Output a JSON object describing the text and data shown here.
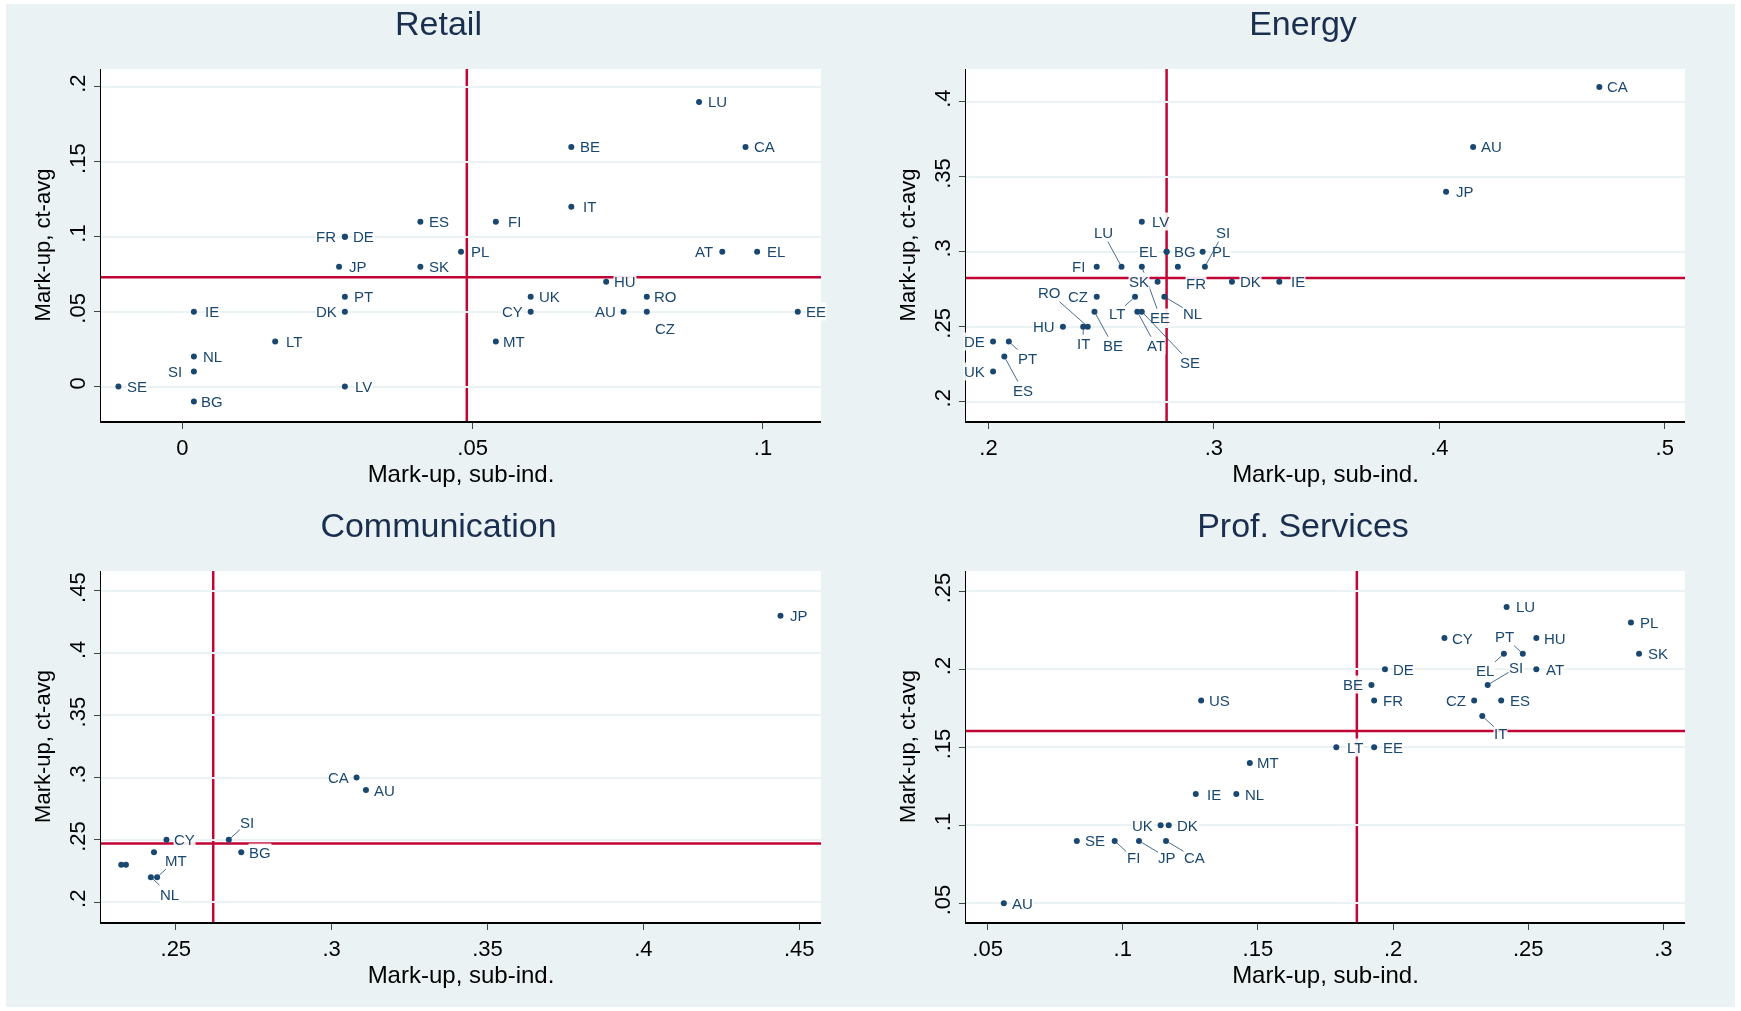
{
  "chart_data": [
    {
      "type": "scatter",
      "title": "Retail",
      "xlabel": "Mark-up, sub-ind.",
      "ylabel": "Mark-up, ct-avg",
      "marker": "circle",
      "grid": "y",
      "legend": false,
      "series": [
        {
          "color": "#1a476f",
          "x": [
            0.089,
            0.067,
            0.097,
            0.067,
            0.041,
            0.054,
            0.028,
            0.028,
            0.048,
            0.093,
            0.099,
            0.027,
            0.041,
            0.073,
            0.028,
            0.06,
            0.08,
            0.002,
            0.028,
            0.06,
            0.076,
            0.08,
            0.106,
            0.016,
            0.054,
            0.002,
            0.002,
            -0.011,
            0.028,
            0.002
          ],
          "values": [
            0.19,
            0.16,
            0.16,
            0.12,
            0.11,
            0.11,
            0.1,
            0.1,
            0.09,
            0.09,
            0.09,
            0.08,
            0.08,
            0.07,
            0.06,
            0.06,
            0.06,
            0.05,
            0.05,
            0.05,
            0.05,
            0.05,
            0.05,
            0.03,
            0.03,
            0.02,
            0.01,
            0,
            0,
            -0.01
          ],
          "value_labels": [
            "LU",
            "BE",
            "CA",
            "IT",
            "ES",
            "FI",
            "DE",
            "FR",
            "PL",
            "AT",
            "EL",
            "JP",
            "SK",
            "HU",
            "PT",
            "UK",
            "RO",
            "IE",
            "DK",
            "CY",
            "AU",
            "CZ",
            "EE",
            "LT",
            "MT",
            "NL",
            "SI",
            "SE",
            "LV",
            "BG"
          ]
        }
      ],
      "xlim": [
        -0.014,
        0.11
      ],
      "ylim": [
        -0.023,
        0.212
      ],
      "xticks": [
        0,
        {
          "value": 0.05,
          "label": ".05"
        },
        {
          "value": 0.1,
          "label": ".1"
        }
      ],
      "yticks": [
        0,
        {
          "value": 0.05,
          "label": ".05"
        },
        {
          "value": 0.1,
          "label": ".1"
        },
        {
          "value": 0.15,
          "label": ".15"
        },
        {
          "value": 0.2,
          "label": ".2"
        }
      ],
      "ref_lines": [
        {
          "axis": "x",
          "value": 0.049,
          "color": "#c10534"
        },
        {
          "axis": "y",
          "value": 0.073,
          "color": "#c10534"
        }
      ]
    },
    {
      "type": "scatter",
      "title": "Energy",
      "xlabel": "Mark-up, sub-ind.",
      "ylabel": "Mark-up, ct-avg",
      "marker": "circle",
      "grid": "y",
      "legend": false,
      "series": [
        {
          "color": "#1a476f",
          "x": [
            0.471,
            0.415,
            0.403,
            0.268,
            0.279,
            0.279,
            0.295,
            0.248,
            0.259,
            0.268,
            0.284,
            0.296,
            0.275,
            0.308,
            0.329,
            0.248,
            0.265,
            0.278,
            0.247,
            0.266,
            0.268,
            0.233,
            0.242,
            0.244,
            0.202,
            0.209,
            0.207,
            0.202
          ],
          "values": [
            0.41,
            0.37,
            0.34,
            0.32,
            0.3,
            0.3,
            0.3,
            0.29,
            0.29,
            0.29,
            0.29,
            0.29,
            0.28,
            0.28,
            0.28,
            0.27,
            0.27,
            0.27,
            0.26,
            0.26,
            0.26,
            0.25,
            0.25,
            0.25,
            0.24,
            0.24,
            0.23,
            0.22
          ],
          "value_labels": [
            "CA",
            "AU",
            "JP",
            "LV",
            "BG",
            "EL",
            "PL",
            "FI",
            "LU",
            "EE",
            "FR",
            "SI",
            "SK",
            "DK",
            "IE",
            "CZ",
            "LT",
            "NL",
            "BE",
            "AT",
            "SE",
            "HU",
            "IT",
            "RO",
            "DE",
            "PT",
            "ES",
            "UK"
          ]
        }
      ],
      "xlim": [
        0.19,
        0.509
      ],
      "ylim": [
        0.187,
        0.422
      ],
      "xticks": [
        {
          "value": 0.2,
          "label": ".2"
        },
        {
          "value": 0.3,
          "label": ".3"
        },
        {
          "value": 0.4,
          "label": ".4"
        },
        {
          "value": 0.5,
          "label": ".5"
        }
      ],
      "yticks": [
        {
          "value": 0.2,
          "label": ".2"
        },
        {
          "value": 0.25,
          "label": ".25"
        },
        {
          "value": 0.3,
          "label": ".3"
        },
        {
          "value": 0.35,
          "label": ".35"
        },
        {
          "value": 0.4,
          "label": ".4"
        }
      ],
      "ref_lines": [
        {
          "axis": "x",
          "value": 0.279,
          "color": "#c10534"
        },
        {
          "axis": "y",
          "value": 0.2825,
          "color": "#c10534"
        }
      ]
    },
    {
      "type": "scatter",
      "title": "Communication",
      "xlabel": "Mark-up, sub-ind.",
      "ylabel": "Mark-up, ct-avg",
      "marker": "circle",
      "grid": "y",
      "legend": false,
      "series": [
        {
          "color": "#1a476f",
          "x": [
            0.444,
            0.308,
            0.311,
            0.247,
            0.267,
            0.243,
            0.271,
            0.2325,
            0.234,
            0.242,
            0.244
          ],
          "values": [
            0.43,
            0.3,
            0.29,
            0.25,
            0.25,
            0.24,
            0.24,
            0.23,
            0.23,
            0.22,
            0.22
          ],
          "value_labels": [
            "JP",
            "CA",
            "AU",
            "CY",
            "SI",
            null,
            "BG",
            null,
            null,
            "NL",
            "MT"
          ]
        }
      ],
      "xlim": [
        0.226,
        0.457
      ],
      "ylim": [
        0.184,
        0.466
      ],
      "xticks": [
        {
          "value": 0.25,
          "label": ".25"
        },
        {
          "value": 0.3,
          "label": ".3"
        },
        {
          "value": 0.35,
          "label": ".35"
        },
        {
          "value": 0.4,
          "label": ".4"
        },
        {
          "value": 0.45,
          "label": ".45"
        }
      ],
      "yticks": [
        {
          "value": 0.2,
          "label": ".2"
        },
        {
          "value": 0.25,
          "label": ".25"
        },
        {
          "value": 0.3,
          "label": ".3"
        },
        {
          "value": 0.35,
          "label": ".35"
        },
        {
          "value": 0.4,
          "label": ".4"
        },
        {
          "value": 0.45,
          "label": ".45"
        }
      ],
      "ref_lines": [
        {
          "axis": "x",
          "value": 0.262,
          "color": "#c10534"
        },
        {
          "axis": "y",
          "value": 0.247,
          "color": "#c10534"
        }
      ]
    },
    {
      "type": "scatter",
      "title": "Prof. Services",
      "xlabel": "Mark-up, sub-ind.",
      "ylabel": "Mark-up, ct-avg",
      "marker": "circle",
      "grid": "y",
      "legend": false,
      "series": [
        {
          "color": "#1a476f",
          "x": [
            0.242,
            0.288,
            0.219,
            0.253,
            0.241,
            0.248,
            0.291,
            0.197,
            0.253,
            0.192,
            0.235,
            0.129,
            0.193,
            0.23,
            0.24,
            0.233,
            0.179,
            0.193,
            0.147,
            0.127,
            0.142,
            0.114,
            0.117,
            0.083,
            0.097,
            0.106,
            0.116,
            0.056
          ],
          "values": [
            0.24,
            0.23,
            0.22,
            0.22,
            0.21,
            0.21,
            0.21,
            0.2,
            0.2,
            0.19,
            0.19,
            0.18,
            0.18,
            0.18,
            0.18,
            0.17,
            0.15,
            0.15,
            0.14,
            0.12,
            0.12,
            0.1,
            0.1,
            0.09,
            0.09,
            0.09,
            0.09,
            0.05
          ],
          "value_labels": [
            "LU",
            "PL",
            "CY",
            "HU",
            "EL",
            "PT",
            "SK",
            "DE",
            "AT",
            "BE",
            "SI",
            "US",
            "FR",
            "CZ",
            "ES",
            "IT",
            "LT",
            "EE",
            "MT",
            "IE",
            "NL",
            "UK",
            "DK",
            "SE",
            "FI",
            "JP",
            "CA",
            "AU"
          ]
        }
      ],
      "xlim": [
        0.042,
        0.308
      ],
      "ylim": [
        0.038,
        0.263
      ],
      "xticks": [
        {
          "value": 0.05,
          "label": ".05"
        },
        {
          "value": 0.1,
          "label": ".1"
        },
        {
          "value": 0.15,
          "label": ".15"
        },
        {
          "value": 0.2,
          "label": ".2"
        },
        {
          "value": 0.25,
          "label": ".25"
        },
        {
          "value": 0.3,
          "label": ".3"
        }
      ],
      "yticks": [
        {
          "value": 0.05,
          "label": ".05"
        },
        {
          "value": 0.1,
          "label": ".1"
        },
        {
          "value": 0.15,
          "label": ".15"
        },
        {
          "value": 0.2,
          "label": ".2"
        },
        {
          "value": 0.25,
          "label": ".25"
        }
      ],
      "ref_lines": [
        {
          "axis": "x",
          "value": 0.1866,
          "color": "#c10534"
        },
        {
          "axis": "y",
          "value": 0.1605,
          "color": "#c10534"
        }
      ]
    }
  ]
}
